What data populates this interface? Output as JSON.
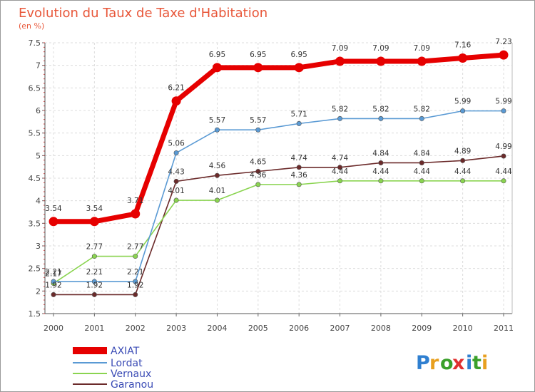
{
  "chart_data": {
    "type": "line",
    "title": "Evolution du Taux de Taxe d'Habitation",
    "subtitle": "(en %)",
    "xlabel": "",
    "ylabel": "",
    "categories": [
      "2000",
      "2001",
      "2002",
      "2003",
      "2004",
      "2005",
      "2006",
      "2007",
      "2008",
      "2009",
      "2010",
      "2011"
    ],
    "ylim": [
      1.5,
      7.5
    ],
    "yticks": [
      "1.5",
      "2",
      "2.5",
      "3",
      "3.5",
      "4",
      "4.5",
      "5",
      "5.5",
      "6",
      "6.5",
      "7",
      "7.5"
    ],
    "grid": true,
    "legend_position": "bottom-left",
    "series": [
      {
        "name": "AXIAT",
        "color": "#e60000",
        "values": [
          3.54,
          3.54,
          3.71,
          6.21,
          6.95,
          6.95,
          6.95,
          7.09,
          7.09,
          7.09,
          7.16,
          7.23
        ]
      },
      {
        "name": "Lordat",
        "color": "#5a9ad4",
        "values": [
          2.21,
          2.21,
          2.21,
          5.06,
          5.57,
          5.57,
          5.71,
          5.82,
          5.82,
          5.82,
          5.99,
          5.99
        ]
      },
      {
        "name": "Vernaux",
        "color": "#8ad450",
        "values": [
          2.17,
          2.77,
          2.77,
          4.01,
          4.01,
          4.36,
          4.36,
          4.44,
          4.44,
          4.44,
          4.44,
          4.44
        ]
      },
      {
        "name": "Garanou",
        "color": "#6b2a2a",
        "values": [
          1.92,
          1.92,
          1.92,
          4.43,
          4.56,
          4.65,
          4.74,
          4.74,
          4.84,
          4.84,
          4.89,
          4.99
        ]
      }
    ],
    "data_labels": [
      [
        "3.54",
        "3.54",
        "3.71",
        "6.21",
        "6.95",
        "6.95",
        "6.95",
        "7.09",
        "7.09",
        "7.09",
        "7.16",
        "7.23"
      ],
      [
        "2.21",
        "2.21",
        "2.21",
        "5.06",
        "5.57",
        "5.57",
        "5.71",
        "5.82",
        "5.82",
        "5.82",
        "5.99",
        "5.99"
      ],
      [
        "2.17",
        "2.77",
        "2.77",
        "4.01",
        "4.01",
        "4.36",
        "4.36",
        "4.44",
        "4.44",
        "4.44",
        "4.44",
        "4.44"
      ],
      [
        "1.92",
        "1.92",
        "1.92",
        "4.43",
        "4.56",
        "4.65",
        "4.74",
        "4.74",
        "4.84",
        "4.84",
        "4.89",
        "4.99"
      ]
    ]
  },
  "logo": {
    "text": "Proxiti",
    "letter_colors": [
      "#2f7fd0",
      "#e8a020",
      "#3aa02a",
      "#e03030",
      "#2f7fd0",
      "#3aa02a",
      "#e8a020"
    ]
  }
}
